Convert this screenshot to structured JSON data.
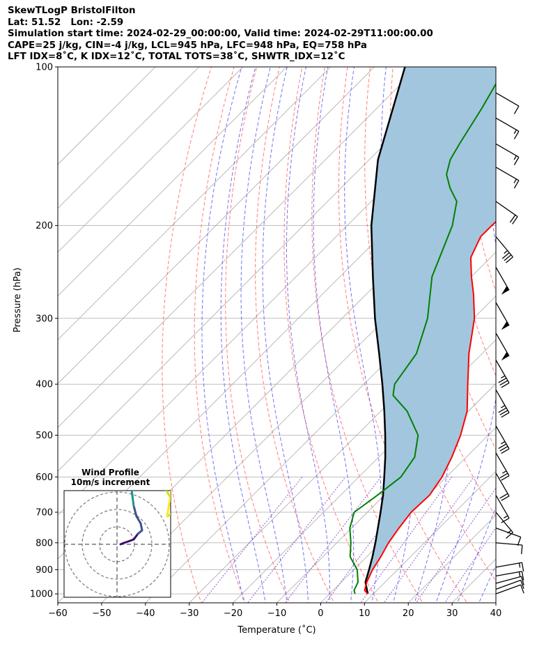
{
  "header": {
    "line1": "SkewTLogP BristolFilton",
    "line2": "Lat: 51.52   Lon: -2.59",
    "line3": "Simulation start time: 2024-02-29_00:00:00, Valid time: 2024-02-29T11:00:00.00",
    "line4": "CAPE=25 j/kg, CIN=-4 j/kg, LCL=945 hPa, LFC=948 hPa, EQ=758 hPa",
    "line5": "LFT IDX=8˚C, K IDX=12˚C, TOTAL TOTS=38˚C, SHWTR_IDX=12˚C"
  },
  "chart_data": [
    {
      "type": "line",
      "xlabel": "Temperature (˚C)",
      "ylabel": "Pressure (hPa)",
      "xlim": [
        -60,
        40
      ],
      "ylim": [
        1040,
        100
      ],
      "y_scale": "log",
      "skew": "x-axis skewed 45 degrees",
      "x_ticks": [
        "−60",
        "−50",
        "−40",
        "−30",
        "−20",
        "−10",
        "0",
        "10",
        "20",
        "30",
        "40"
      ],
      "y_ticks": [
        "100",
        "200",
        "300",
        "400",
        "500",
        "600",
        "700",
        "800",
        "900",
        "1000"
      ],
      "grid": true,
      "shaded_area": "CAPE/CIN region between parcel path and temperature",
      "colors": {
        "temperature": "#ff0000",
        "dewpoint": "#008000",
        "parcel": "#000000",
        "shade": "#a2c6de",
        "dry_adiabats": "#ff6666",
        "moist_adiabats": "#5a5af0",
        "mixing_ratio": "#8844cc",
        "isotherms": "#aaaaaa",
        "isobars": "#aaaaaa"
      },
      "series": [
        {
          "key": "temperature",
          "points": [
            [
              1000,
              8.7
            ],
            [
              985,
              7.2
            ],
            [
              950,
              5.8
            ],
            [
              900,
              4.3
            ],
            [
              850,
              3.2
            ],
            [
              800,
              1.8
            ],
            [
              750,
              0.8
            ],
            [
              700,
              0.0
            ],
            [
              650,
              0.3
            ],
            [
              600,
              -1.0
            ],
            [
              550,
              -3.3
            ],
            [
              500,
              -6.3
            ],
            [
              450,
              -10.3
            ],
            [
              400,
              -16.3
            ],
            [
              350,
              -23.0
            ],
            [
              300,
              -29.8
            ],
            [
              270,
              -35.5
            ],
            [
              250,
              -40.0
            ],
            [
              230,
              -44.5
            ],
            [
              210,
              -47.0
            ],
            [
              200,
              -47.0
            ],
            [
              180,
              -46.5
            ],
            [
              160,
              -47.0
            ],
            [
              150,
              -48.0
            ],
            [
              140,
              -49.0
            ],
            [
              130,
              -49.5
            ],
            [
              120,
              -50.5
            ],
            [
              110,
              -53.0
            ],
            [
              100,
              -55.0
            ]
          ]
        },
        {
          "key": "dewpoint",
          "points": [
            [
              1000,
              5.8
            ],
            [
              985,
              4.8
            ],
            [
              950,
              3.8
            ],
            [
              900,
              0.8
            ],
            [
              850,
              -3.8
            ],
            [
              800,
              -6.8
            ],
            [
              750,
              -10.4
            ],
            [
              700,
              -13.0
            ],
            [
              650,
              -11.6
            ],
            [
              600,
              -10.4
            ],
            [
              550,
              -11.8
            ],
            [
              500,
              -16.0
            ],
            [
              450,
              -24.0
            ],
            [
              420,
              -30.8
            ],
            [
              400,
              -33.0
            ],
            [
              350,
              -35.0
            ],
            [
              300,
              -40.5
            ],
            [
              250,
              -49.0
            ],
            [
              200,
              -56.0
            ],
            [
              180,
              -60.5
            ],
            [
              170,
              -65.0
            ],
            [
              160,
              -69.0
            ],
            [
              150,
              -71.5
            ],
            [
              140,
              -73.0
            ],
            [
              120,
              -76.0
            ],
            [
              100,
              -80.0
            ]
          ]
        },
        {
          "key": "parcel",
          "points": [
            [
              1000,
              8.7
            ],
            [
              950,
              5.5
            ],
            [
              900,
              3.5
            ],
            [
              850,
              1.3
            ],
            [
              800,
              -1.2
            ],
            [
              750,
              -4.0
            ],
            [
              700,
              -7.0
            ],
            [
              650,
              -10.3
            ],
            [
              600,
              -14.2
            ],
            [
              550,
              -18.5
            ],
            [
              500,
              -23.5
            ],
            [
              450,
              -29.2
            ],
            [
              400,
              -35.8
            ],
            [
              350,
              -43.5
            ],
            [
              300,
              -52.5
            ],
            [
              250,
              -62.5
            ],
            [
              200,
              -74.5
            ],
            [
              150,
              -88.0
            ],
            [
              100,
              -103.0
            ]
          ]
        }
      ],
      "wind_barbs": [
        {
          "p": 1000,
          "spd": 10,
          "dir": 250
        },
        {
          "p": 980,
          "spd": 10,
          "dir": 250
        },
        {
          "p": 955,
          "spd": 10,
          "dir": 255
        },
        {
          "p": 925,
          "spd": 15,
          "dir": 260
        },
        {
          "p": 890,
          "spd": 15,
          "dir": 260
        },
        {
          "p": 800,
          "spd": 10,
          "dir": 275
        },
        {
          "p": 750,
          "spd": 10,
          "dir": 290
        },
        {
          "p": 700,
          "spd": 15,
          "dir": 320
        },
        {
          "p": 650,
          "spd": 15,
          "dir": 330
        },
        {
          "p": 590,
          "spd": 20,
          "dir": 330
        },
        {
          "p": 540,
          "spd": 25,
          "dir": 330
        },
        {
          "p": 480,
          "spd": 35,
          "dir": 330
        },
        {
          "p": 410,
          "spd": 35,
          "dir": 330
        },
        {
          "p": 360,
          "spd": 35,
          "dir": 330
        },
        {
          "p": 320,
          "spd": 50,
          "dir": 330
        },
        {
          "p": 280,
          "spd": 50,
          "dir": 330
        },
        {
          "p": 240,
          "spd": 50,
          "dir": 330
        },
        {
          "p": 210,
          "spd": 35,
          "dir": 320
        },
        {
          "p": 180,
          "spd": 20,
          "dir": 305
        },
        {
          "p": 155,
          "spd": 15,
          "dir": 300
        },
        {
          "p": 140,
          "spd": 15,
          "dir": 300
        },
        {
          "p": 125,
          "spd": 15,
          "dir": 300
        },
        {
          "p": 112,
          "spd": 10,
          "dir": 300
        }
      ]
    },
    {
      "type": "line",
      "title": "Wind Profile",
      "subtitle": "10m/s increment",
      "rings": 3,
      "axis_lines": "dashed cross at center",
      "colormap": [
        "#3b0f70",
        "#3b528b",
        "#21918c",
        "#5ec962",
        "#c9e31d",
        "#fde725"
      ],
      "hodograph": [
        [
          0.5,
          0.0
        ],
        [
          1.0,
          0.2
        ],
        [
          1.6,
          0.4
        ],
        [
          2.4,
          0.7
        ],
        [
          3.0,
          1.5
        ],
        [
          3.6,
          2.0
        ],
        [
          3.4,
          3.0
        ],
        [
          2.8,
          4.0
        ],
        [
          2.4,
          5.5
        ],
        [
          2.2,
          7.0
        ],
        [
          2.0,
          8.5
        ],
        [
          2.2,
          10.0
        ],
        [
          3.5,
          10.8
        ],
        [
          5.0,
          11.2
        ],
        [
          6.6,
          11.5
        ],
        [
          6.4,
          10.5
        ],
        [
          6.0,
          9.5
        ],
        [
          7.8,
          6.5
        ],
        [
          8.4,
          5.0
        ],
        [
          8.0,
          4.5
        ],
        [
          7.2,
          4.0
        ],
        [
          7.6,
          6.5
        ],
        [
          8.0,
          9.0
        ],
        [
          9.0,
          12.5
        ]
      ]
    }
  ]
}
